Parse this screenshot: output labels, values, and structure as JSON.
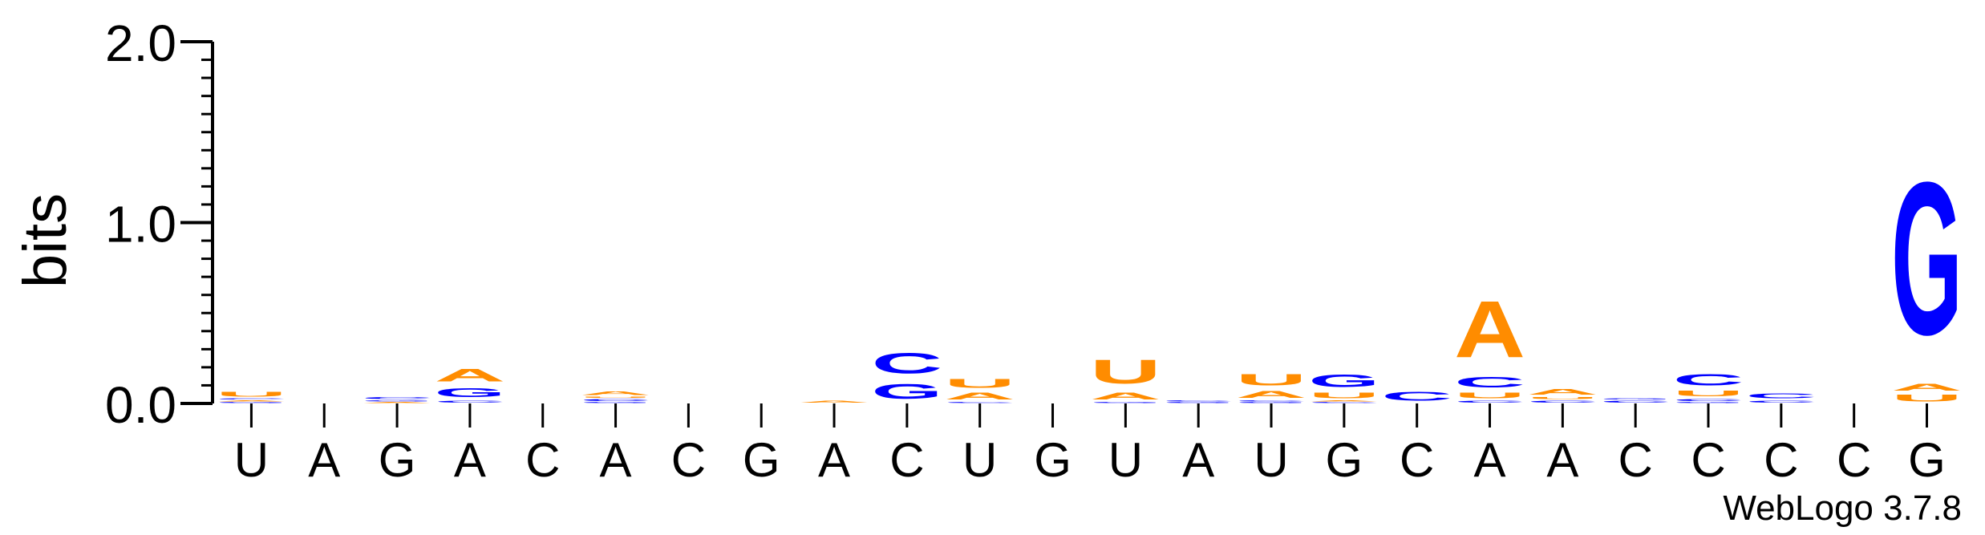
{
  "chart_data": {
    "type": "sequence-logo",
    "ylabel": "bits",
    "ylim": [
      0,
      2.0
    ],
    "y_ticks": [
      {
        "value": 0.0,
        "label": "0.0"
      },
      {
        "value": 1.0,
        "label": "1.0"
      },
      {
        "value": 2.0,
        "label": "2.0"
      }
    ],
    "consensus": [
      "U",
      "A",
      "G",
      "A",
      "C",
      "A",
      "C",
      "G",
      "A",
      "C",
      "U",
      "G",
      "U",
      "A",
      "U",
      "G",
      "C",
      "A",
      "A",
      "C",
      "C",
      "C",
      "C",
      "G"
    ],
    "colors": {
      "A": "#ff8c00",
      "U": "#ff8c00",
      "G": "#0000ff",
      "C": "#0000ff"
    },
    "stacks": [
      [
        {
          "base": "G",
          "bits": 0.01
        },
        {
          "base": "A",
          "bits": 0.01
        },
        {
          "base": "C",
          "bits": 0.01
        },
        {
          "base": "U",
          "bits": 0.04
        }
      ],
      [],
      [
        {
          "base": "A",
          "bits": 0.01
        },
        {
          "base": "G",
          "bits": 0.01
        },
        {
          "base": "C",
          "bits": 0.02
        }
      ],
      [
        {
          "base": "C",
          "bits": 0.02
        },
        {
          "base": "G",
          "bits": 0.08
        },
        {
          "base": "A",
          "bits": 0.11
        }
      ],
      [],
      [
        {
          "base": "G",
          "bits": 0.01
        },
        {
          "base": "C",
          "bits": 0.02
        },
        {
          "base": "U",
          "bits": 0.01
        },
        {
          "base": "A",
          "bits": 0.03
        }
      ],
      [],
      [],
      [
        {
          "base": "A",
          "bits": 0.02
        }
      ],
      [
        {
          "base": "G",
          "bits": 0.13
        },
        {
          "base": "C",
          "bits": 0.18
        }
      ],
      [
        {
          "base": "C",
          "bits": 0.01
        },
        {
          "base": "A",
          "bits": 0.06
        },
        {
          "base": "U",
          "bits": 0.08
        }
      ],
      [],
      [
        {
          "base": "G",
          "bits": 0.01
        },
        {
          "base": "A",
          "bits": 0.06
        },
        {
          "base": "U",
          "bits": 0.21
        }
      ],
      [
        {
          "base": "G",
          "bits": 0.01
        },
        {
          "base": "C",
          "bits": 0.01
        }
      ],
      [
        {
          "base": "G",
          "bits": 0.01
        },
        {
          "base": "C",
          "bits": 0.01
        },
        {
          "base": "A",
          "bits": 0.06
        },
        {
          "base": "U",
          "bits": 0.1
        }
      ],
      [
        {
          "base": "C",
          "bits": 0.01
        },
        {
          "base": "A",
          "bits": 0.01
        },
        {
          "base": "U",
          "bits": 0.05
        },
        {
          "base": "G",
          "bits": 0.11
        }
      ],
      [
        {
          "base": "C",
          "bits": 0.08
        }
      ],
      [
        {
          "base": "C",
          "bits": 0.02
        },
        {
          "base": "U",
          "bits": 0.05
        },
        {
          "base": "C",
          "bits": 0.09
        },
        {
          "base": "A",
          "bits": 0.5
        }
      ],
      [
        {
          "base": "C",
          "bits": 0.02
        },
        {
          "base": "U",
          "bits": 0.02
        },
        {
          "base": "A",
          "bits": 0.05
        }
      ],
      [
        {
          "base": "C",
          "bits": 0.02
        },
        {
          "base": "G",
          "bits": 0.01
        }
      ],
      [
        {
          "base": "G",
          "bits": 0.01
        },
        {
          "base": "C",
          "bits": 0.02
        },
        {
          "base": "U",
          "bits": 0.05
        },
        {
          "base": "C",
          "bits": 0.1
        }
      ],
      [
        {
          "base": "C",
          "bits": 0.02
        },
        {
          "base": "C",
          "bits": 0.04
        }
      ],
      [],
      [
        {
          "base": "U",
          "bits": 0.06
        },
        {
          "base": "A",
          "bits": 0.06
        },
        {
          "base": "G",
          "bits": 1.35
        }
      ]
    ]
  },
  "footer": {
    "credit": "WebLogo 3.7.8"
  }
}
